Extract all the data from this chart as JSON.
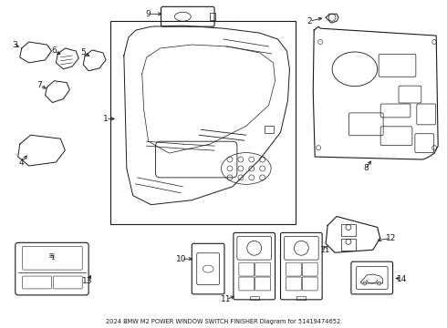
{
  "title": "2024 BMW M2 POWER WINDOW SWITCH FINISHER Diagram for 51419474652",
  "bg_color": "#ffffff",
  "line_color": "#1a1a1a",
  "fig_width": 4.9,
  "fig_height": 3.6,
  "dpi": 100
}
